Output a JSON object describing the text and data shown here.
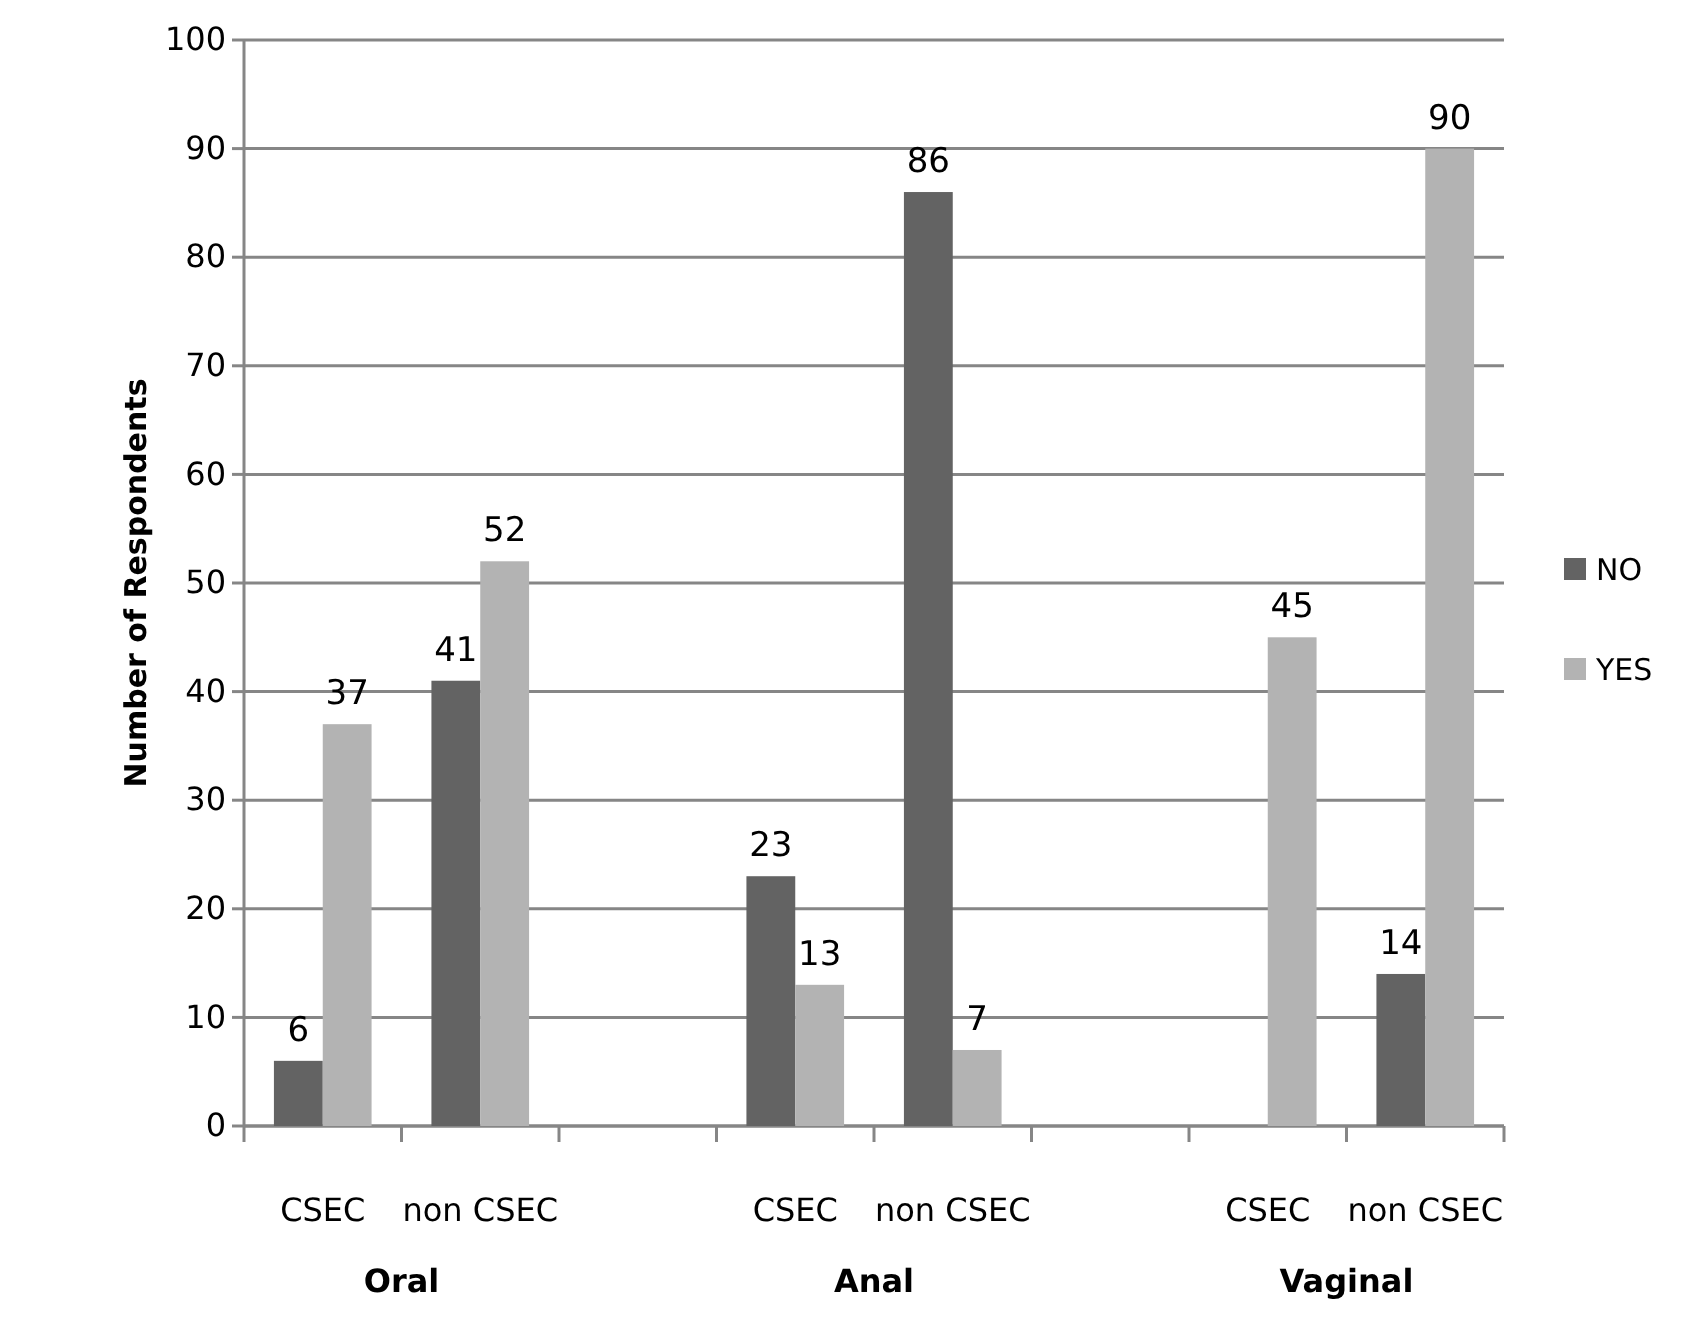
{
  "chart_data": {
    "type": "bar",
    "ylabel": "Number of Respondents",
    "categories": [
      "CSEC",
      "non CSEC",
      null,
      "CSEC",
      "non CSEC",
      null,
      "CSEC",
      "non CSEC"
    ],
    "series": [
      {
        "name": "NO",
        "color": "#636363",
        "values": [
          6,
          41,
          null,
          23,
          86,
          null,
          null,
          14
        ]
      },
      {
        "name": "YES",
        "color": "#b3b3b3",
        "values": [
          37,
          52,
          null,
          13,
          7,
          null,
          45,
          90
        ]
      }
    ],
    "annotations": [
      "Oral",
      "Anal",
      "Vaginal"
    ],
    "ylim": [
      0,
      100
    ],
    "yticks": [
      0,
      10,
      20,
      30,
      40,
      50,
      60,
      70,
      80,
      90,
      100
    ],
    "grid": "y",
    "legend": "right",
    "data_labels": true
  }
}
